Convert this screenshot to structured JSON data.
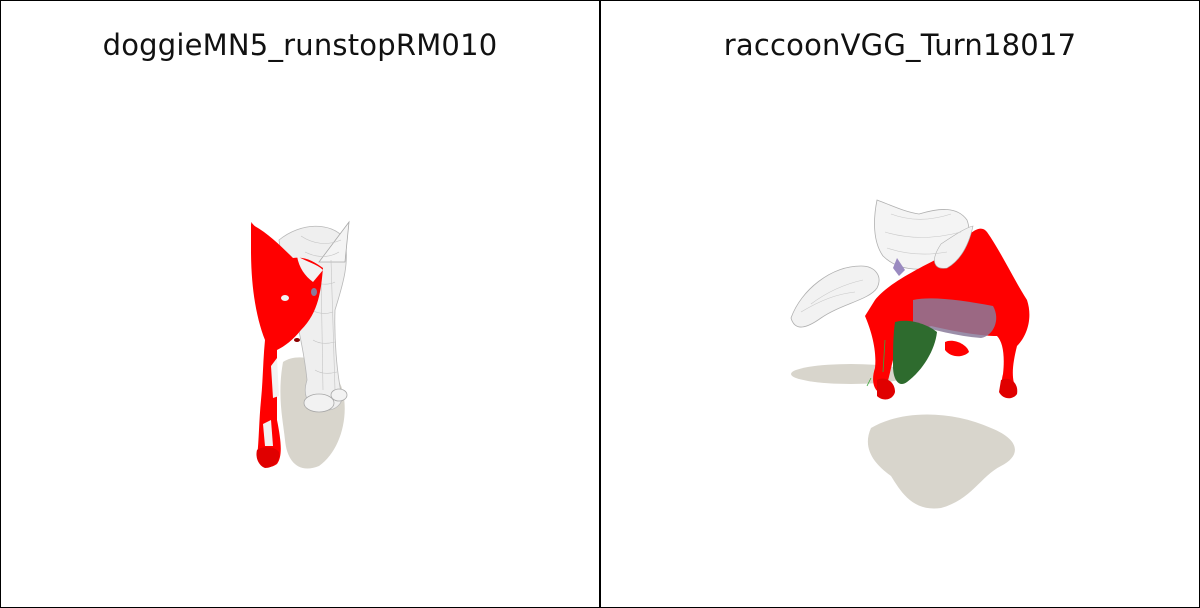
{
  "panels": [
    {
      "title": "doggieMN5_runstopRM010",
      "model": "dog",
      "pose": "running toward viewer"
    },
    {
      "title": "raccoonVGG_Turn18017",
      "model": "raccoon",
      "pose": "turning"
    }
  ],
  "colors": {
    "background": "#ffffff",
    "border": "#000000",
    "mesh_highlight": "#ff0000",
    "mesh_base": "#eeeeee",
    "shadow": "#d8d5cc",
    "belly_green": "#2e6b2e",
    "belly_purple": "#8a7a9a"
  }
}
